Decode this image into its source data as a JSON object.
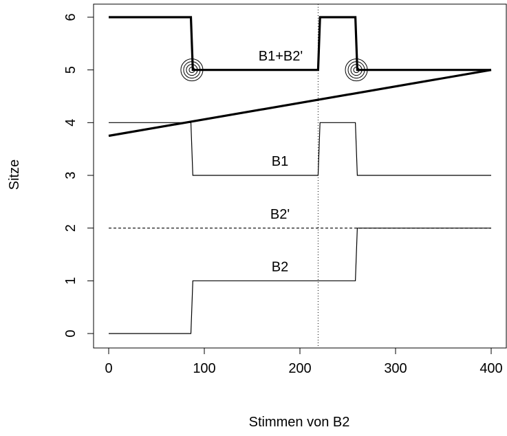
{
  "chart_data": {
    "type": "line",
    "title": "",
    "xlabel": "Stimmen von B2",
    "ylabel": "Sitze",
    "xlim": [
      0,
      400
    ],
    "ylim": [
      0,
      6
    ],
    "x_ticks": [
      0,
      100,
      200,
      300,
      400
    ],
    "y_ticks": [
      0,
      1,
      2,
      3,
      4,
      5,
      6
    ],
    "x_tick_labels": [
      "0",
      "100",
      "200",
      "300",
      "400"
    ],
    "y_tick_labels": [
      "0",
      "1",
      "2",
      "3",
      "4",
      "5",
      "6"
    ],
    "grid": false,
    "legend": "none",
    "series": [
      {
        "name": "B1+B2'",
        "style": "thick",
        "points": [
          [
            0,
            6
          ],
          [
            86,
            6
          ],
          [
            88,
            5
          ],
          [
            219,
            5
          ],
          [
            221,
            6
          ],
          [
            258,
            6
          ],
          [
            260,
            5
          ],
          [
            400,
            5
          ]
        ]
      },
      {
        "name": "B1",
        "style": "thin",
        "points": [
          [
            0,
            4
          ],
          [
            86,
            4
          ],
          [
            88,
            3
          ],
          [
            219,
            3
          ],
          [
            221,
            4
          ],
          [
            258,
            4
          ],
          [
            260,
            3
          ],
          [
            400,
            3
          ]
        ]
      },
      {
        "name": "B2'",
        "style": "dashed",
        "points": [
          [
            0,
            2
          ],
          [
            258,
            2
          ],
          [
            260,
            2
          ],
          [
            400,
            2
          ]
        ]
      },
      {
        "name": "B2",
        "style": "thin",
        "points": [
          [
            0,
            0
          ],
          [
            86,
            0
          ],
          [
            88,
            1
          ],
          [
            258,
            1
          ],
          [
            260,
            2
          ],
          [
            400,
            2
          ]
        ]
      },
      {
        "name": "",
        "style": "thick",
        "points": [
          [
            0,
            3.75
          ],
          [
            400,
            5
          ]
        ]
      }
    ],
    "vertical_line": {
      "x": 219,
      "style": "dotted"
    },
    "markers": [
      {
        "x": 87,
        "y": 5
      },
      {
        "x": 259,
        "y": 5
      }
    ],
    "annotations": [
      {
        "text": "B1+B2'",
        "x": 178,
        "y": 5.18
      },
      {
        "text": "B1",
        "x": 180,
        "y": 3.18
      },
      {
        "text": "B2'",
        "x": 180,
        "y": 2.18
      },
      {
        "text": "B2",
        "x": 180,
        "y": 1.18
      }
    ]
  }
}
